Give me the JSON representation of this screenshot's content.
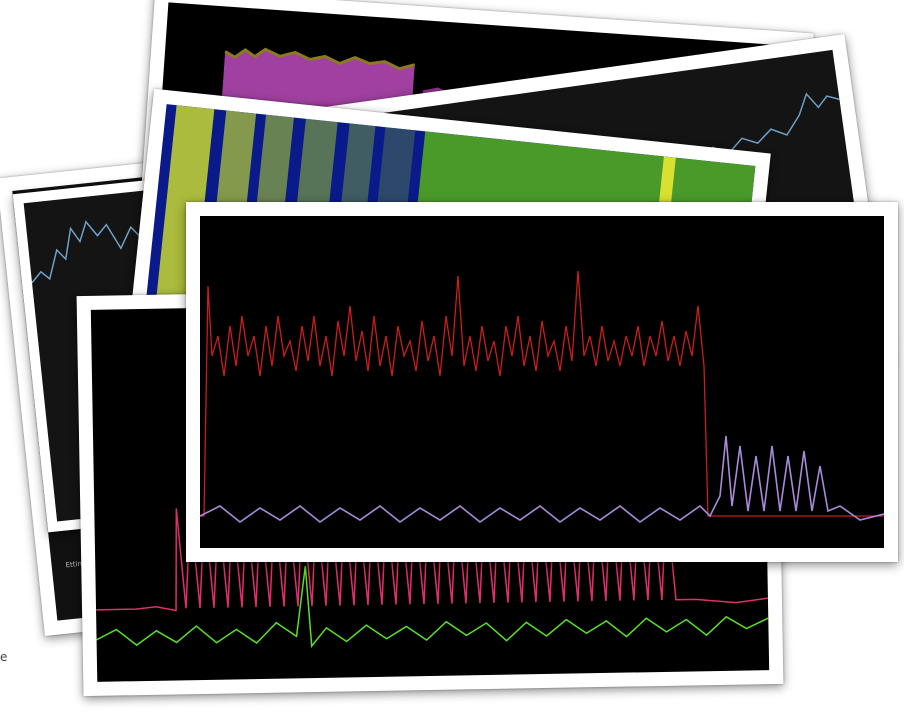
{
  "image": {
    "description_labels": [],
    "edge_text": "e",
    "tiny_label": "Ettin"
  },
  "colors": {
    "background": "#ffffff",
    "photo_border": "#ffffff",
    "plot_background": "#000000",
    "red_trace": "#c81e1e",
    "pink_trace": "#e0306a",
    "green_trace": "#59e02a",
    "blue_trace": "#6ea0c8",
    "purple_fill": "#a040a0",
    "spectrogram_blue": "#0a1a8a",
    "spectrogram_yellow": "#d8e030"
  },
  "photos": [
    {
      "id": "far-left-blue-trace"
    },
    {
      "id": "purple-histogram"
    },
    {
      "id": "blue-trace-right"
    },
    {
      "id": "spectrogram"
    },
    {
      "id": "pink-green-traces"
    },
    {
      "id": "red-main-trace"
    }
  ]
}
